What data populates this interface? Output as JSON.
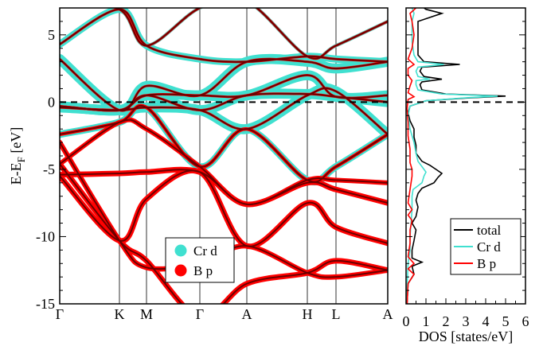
{
  "chart_data": [
    {
      "type": "line",
      "panel": "band-structure",
      "ylabel": "E-E_F [eV]",
      "ylim": [
        -15,
        7
      ],
      "yticks": [
        5,
        0,
        -5,
        -10,
        -15
      ],
      "x_ticks": [
        "Γ",
        "K",
        "M",
        "Γ",
        "A",
        "H",
        "L",
        "A"
      ],
      "fermi_level": 0,
      "legend": {
        "position": "lower-right",
        "entries": [
          {
            "label": "Cr d",
            "color": "#40e0d0"
          },
          {
            "label": "B p",
            "color": "#ff0000"
          }
        ]
      },
      "band_color": "#6b0000",
      "bands_at_kpoints": [
        [
          -4.6,
          -10.3,
          -11.8,
          -16.0,
          -13.5,
          -12.7,
          -11.8,
          -12.5
        ],
        [
          -3.0,
          -10.3,
          -12.3,
          -12.0,
          -10.7,
          -12.7,
          -13.0,
          -12.5
        ],
        [
          -5.5,
          -10.3,
          -7.2,
          -5.2,
          -10.7,
          -7.5,
          -9.3,
          -10.5
        ],
        [
          -5.4,
          -5.3,
          -5.2,
          -5.2,
          -7.6,
          -6.0,
          -6.5,
          -7.5
        ],
        [
          -4.6,
          -1.5,
          -2.0,
          -4.8,
          -7.6,
          -5.8,
          -5.8,
          -6.0
        ],
        [
          -2.4,
          -1.5,
          -0.4,
          -4.8,
          -2.0,
          -5.8,
          -4.8,
          -2.4
        ],
        [
          -0.4,
          -0.6,
          -0.4,
          -0.6,
          -2.0,
          0.5,
          0.8,
          -2.4
        ],
        [
          -0.3,
          -0.6,
          0.5,
          -0.6,
          0.5,
          0.6,
          0.4,
          0.0
        ],
        [
          -0.3,
          -0.6,
          0.5,
          0.5,
          0.5,
          2.0,
          0.4,
          0.5
        ],
        [
          3.2,
          -0.6,
          1.2,
          0.5,
          3.0,
          3.0,
          2.5,
          3.0
        ],
        [
          4.3,
          6.9,
          4.2,
          3.2,
          3.0,
          3.4,
          3.2,
          3.0
        ],
        [
          7.5,
          6.9,
          4.2,
          7.0,
          7.5,
          3.4,
          4.2,
          6.0
        ]
      ]
    },
    {
      "type": "line",
      "panel": "density-of-states",
      "xlabel": "DOS [states/eV]",
      "xlim": [
        0,
        6
      ],
      "xticks": [
        0,
        1,
        2,
        3,
        4,
        5,
        6
      ],
      "ylim": [
        -15,
        7
      ],
      "fermi_level": 0,
      "legend": {
        "position": "lower-right",
        "entries": [
          {
            "label": "total",
            "color": "#000000"
          },
          {
            "label": "Cr d",
            "color": "#40e0d0"
          },
          {
            "label": "B p",
            "color": "#ff0000"
          }
        ]
      },
      "series": [
        {
          "name": "total",
          "color": "#000000",
          "points": [
            [
              0.05,
              -15
            ],
            [
              0.1,
              -13.5
            ],
            [
              0.4,
              -12.8
            ],
            [
              0.3,
              -12.2
            ],
            [
              0.8,
              -11.9
            ],
            [
              0.3,
              -11.6
            ],
            [
              0.3,
              -11
            ],
            [
              0.4,
              -10.3
            ],
            [
              0.5,
              -9.5
            ],
            [
              0.3,
              -9
            ],
            [
              0.5,
              -8.5
            ],
            [
              0.6,
              -7.8
            ],
            [
              0.5,
              -7.3
            ],
            [
              0.6,
              -6.8
            ],
            [
              0.8,
              -6.4
            ],
            [
              1.4,
              -6.0
            ],
            [
              1.6,
              -5.6
            ],
            [
              1.8,
              -5.3
            ],
            [
              1.5,
              -5.0
            ],
            [
              1.2,
              -4.7
            ],
            [
              0.8,
              -4.4
            ],
            [
              0.5,
              -3.8
            ],
            [
              0.5,
              -3.2
            ],
            [
              0.4,
              -2.6
            ],
            [
              0.4,
              -2.0
            ],
            [
              0.2,
              -1.4
            ],
            [
              0.1,
              -0.8
            ],
            [
              0.2,
              -0.3
            ],
            [
              1.0,
              0.1
            ],
            [
              3.0,
              0.3
            ],
            [
              5.0,
              0.45
            ],
            [
              2.0,
              0.6
            ],
            [
              0.8,
              0.9
            ],
            [
              0.7,
              1.3
            ],
            [
              0.8,
              1.5
            ],
            [
              1.8,
              1.7
            ],
            [
              0.9,
              1.9
            ],
            [
              0.7,
              2.3
            ],
            [
              0.8,
              2.6
            ],
            [
              2.7,
              2.8
            ],
            [
              0.9,
              3.0
            ],
            [
              0.6,
              3.5
            ],
            [
              0.6,
              4.5
            ],
            [
              0.6,
              5.5
            ],
            [
              0.6,
              6.0
            ],
            [
              1.8,
              6.6
            ],
            [
              1.0,
              6.9
            ],
            [
              0.9,
              7.0
            ]
          ]
        },
        {
          "name": "Cr d",
          "color": "#40e0d0",
          "points": [
            [
              0.02,
              -15
            ],
            [
              0.1,
              -12
            ],
            [
              0.2,
              -11
            ],
            [
              0.2,
              -10
            ],
            [
              0.25,
              -9
            ],
            [
              0.3,
              -8
            ],
            [
              0.3,
              -7
            ],
            [
              0.35,
              -6.5
            ],
            [
              0.8,
              -6.0
            ],
            [
              0.9,
              -5.5
            ],
            [
              1.0,
              -5.2
            ],
            [
              0.8,
              -4.8
            ],
            [
              0.6,
              -4.4
            ],
            [
              0.5,
              -3.8
            ],
            [
              0.4,
              -3.0
            ],
            [
              0.3,
              -2.5
            ],
            [
              0.2,
              -2.0
            ],
            [
              0.1,
              -1.0
            ],
            [
              0.2,
              -0.3
            ],
            [
              1.0,
              0.1
            ],
            [
              2.8,
              0.3
            ],
            [
              4.6,
              0.45
            ],
            [
              1.8,
              0.6
            ],
            [
              0.6,
              0.9
            ],
            [
              0.5,
              1.3
            ],
            [
              0.5,
              1.6
            ],
            [
              1.2,
              1.7
            ],
            [
              0.6,
              1.9
            ],
            [
              0.5,
              2.3
            ],
            [
              0.6,
              2.6
            ],
            [
              1.9,
              2.8
            ],
            [
              0.6,
              3.0
            ],
            [
              0.4,
              3.5
            ],
            [
              0.3,
              4.5
            ],
            [
              0.3,
              5.5
            ],
            [
              0.3,
              6.0
            ],
            [
              0.4,
              6.6
            ],
            [
              0.3,
              7.0
            ]
          ]
        },
        {
          "name": "B p",
          "color": "#ff0000",
          "points": [
            [
              0.05,
              -15
            ],
            [
              0.1,
              -13.5
            ],
            [
              0.4,
              -12.8
            ],
            [
              0.1,
              -12.4
            ],
            [
              0.4,
              -12
            ],
            [
              0.1,
              -11.5
            ],
            [
              0.2,
              -10.5
            ],
            [
              0.2,
              -9.5
            ],
            [
              0.3,
              -8.8
            ],
            [
              0.1,
              -8.4
            ],
            [
              0.3,
              -8.0
            ],
            [
              0.1,
              -7.5
            ],
            [
              0.2,
              -6.5
            ],
            [
              0.3,
              -5.5
            ],
            [
              0.3,
              -5.0
            ],
            [
              0.2,
              -4.5
            ],
            [
              0.2,
              -3.5
            ],
            [
              0.1,
              -2.5
            ],
            [
              0.1,
              -1.5
            ],
            [
              0.05,
              -0.5
            ],
            [
              0.1,
              0.2
            ],
            [
              0.4,
              0.4
            ],
            [
              0.1,
              0.7
            ],
            [
              0.2,
              1.2
            ],
            [
              0.3,
              1.6
            ],
            [
              0.1,
              2.0
            ],
            [
              0.1,
              2.5
            ],
            [
              0.4,
              2.8
            ],
            [
              0.1,
              3.2
            ],
            [
              0.3,
              4.0
            ],
            [
              0.4,
              5.0
            ],
            [
              0.3,
              6.0
            ],
            [
              0.2,
              6.6
            ],
            [
              0.5,
              7.0
            ]
          ]
        }
      ]
    }
  ]
}
